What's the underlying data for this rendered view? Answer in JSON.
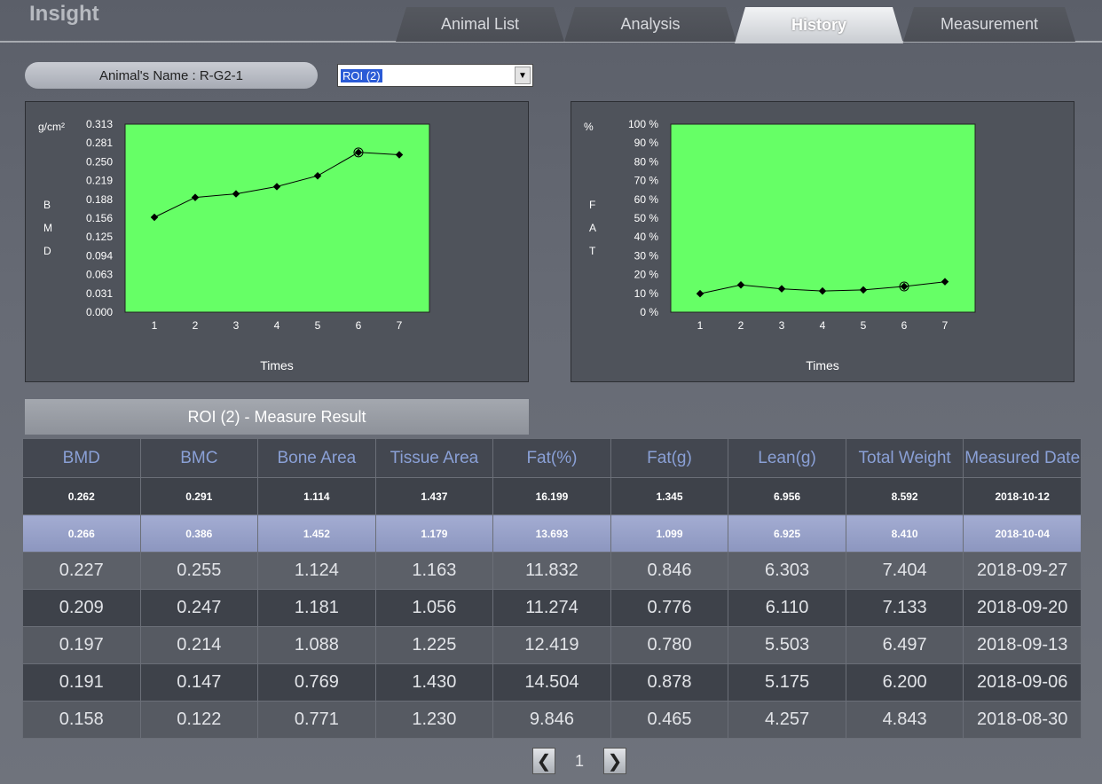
{
  "app": {
    "title": "Insight"
  },
  "tabs": [
    {
      "label": "Animal List",
      "active": false
    },
    {
      "label": "Analysis",
      "active": false
    },
    {
      "label": "History",
      "active": true
    },
    {
      "label": "Measurement",
      "active": false
    }
  ],
  "animal_name": "Animal's Name  : R-G2-1",
  "roi_select": {
    "value": "ROI (2)"
  },
  "chart_data": [
    {
      "type": "line",
      "ylabel": "BMD",
      "unit": "g/cm²",
      "xlabel": "Times",
      "x": [
        1,
        2,
        3,
        4,
        5,
        6,
        7
      ],
      "values": [
        0.158,
        0.191,
        0.197,
        0.209,
        0.227,
        0.266,
        0.262
      ],
      "highlight_index": 5,
      "yticks": [
        "0.313",
        "0.281",
        "0.250",
        "0.219",
        "0.188",
        "0.156",
        "0.125",
        "0.094",
        "0.063",
        "0.031",
        "0.000"
      ],
      "ylim": [
        0,
        0.313
      ],
      "plot_color": "#66ff66"
    },
    {
      "type": "line",
      "ylabel": "FAT",
      "unit": "%",
      "xlabel": "Times",
      "x": [
        1,
        2,
        3,
        4,
        5,
        6,
        7
      ],
      "values": [
        9.846,
        14.504,
        12.419,
        11.274,
        11.832,
        13.693,
        16.199
      ],
      "highlight_index": 5,
      "yticks": [
        "100 %",
        "90 %",
        "80 %",
        "70 %",
        "60 %",
        "50 %",
        "40 %",
        "30 %",
        "20 %",
        "10 %",
        "0 %"
      ],
      "ylim": [
        0,
        100
      ],
      "plot_color": "#66ff66"
    }
  ],
  "section_title": "ROI (2) - Measure Result",
  "table": {
    "headers": [
      "BMD",
      "BMC",
      "Bone Area",
      "Tissue Area",
      "Fat(%)",
      "Fat(g)",
      "Lean(g)",
      "Total Weight",
      "Measured Date"
    ],
    "rows": [
      [
        "0.262",
        "0.291",
        "1.114",
        "1.437",
        "16.199",
        "1.345",
        "6.956",
        "8.592",
        "2018-10-12"
      ],
      [
        "0.266",
        "0.386",
        "1.452",
        "1.179",
        "13.693",
        "1.099",
        "6.925",
        "8.410",
        "2018-10-04"
      ],
      [
        "0.227",
        "0.255",
        "1.124",
        "1.163",
        "11.832",
        "0.846",
        "6.303",
        "7.404",
        "2018-09-27"
      ],
      [
        "0.209",
        "0.247",
        "1.181",
        "1.056",
        "11.274",
        "0.776",
        "6.110",
        "7.133",
        "2018-09-20"
      ],
      [
        "0.197",
        "0.214",
        "1.088",
        "1.225",
        "12.419",
        "0.780",
        "5.503",
        "6.497",
        "2018-09-13"
      ],
      [
        "0.191",
        "0.147",
        "0.769",
        "1.430",
        "14.504",
        "0.878",
        "5.175",
        "6.200",
        "2018-09-06"
      ],
      [
        "0.158",
        "0.122",
        "0.771",
        "1.230",
        "9.846",
        "0.465",
        "4.257",
        "4.843",
        "2018-08-30"
      ]
    ],
    "selected_row": 1
  },
  "pager": {
    "prev": "❮",
    "page": "1",
    "next": "❯"
  }
}
